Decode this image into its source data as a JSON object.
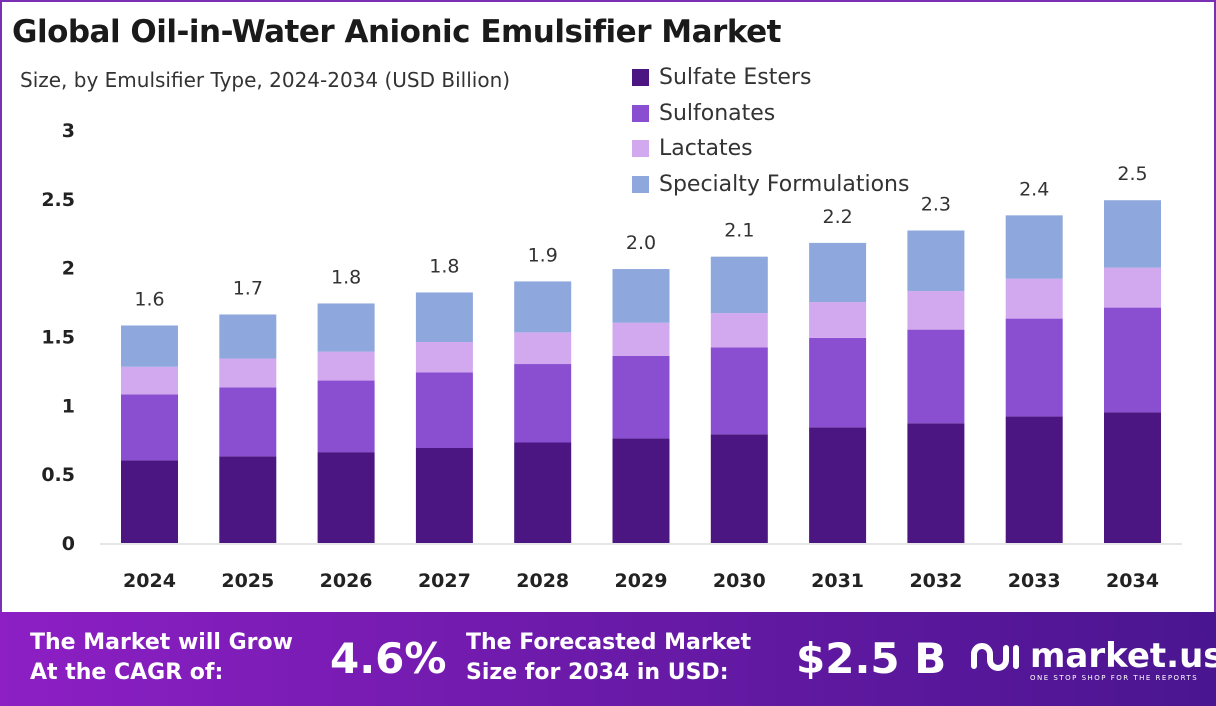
{
  "chart_data": {
    "type": "bar",
    "stacked": true,
    "title": "Global Oil-in-Water Anionic Emulsifier Market",
    "subtitle": "Size, by  Emulsifier Type, 2024-2034 (USD Billion)",
    "categories": [
      "2024",
      "2025",
      "2026",
      "2027",
      "2028",
      "2029",
      "2030",
      "2031",
      "2032",
      "2033",
      "2034"
    ],
    "series": [
      {
        "name": "Sulfate Esters",
        "color": "#4b1582",
        "values": [
          0.6,
          0.63,
          0.66,
          0.69,
          0.73,
          0.76,
          0.79,
          0.84,
          0.87,
          0.92,
          0.95
        ]
      },
      {
        "name": "Sulfonates",
        "color": "#8a4fd0",
        "values": [
          0.48,
          0.5,
          0.52,
          0.55,
          0.57,
          0.6,
          0.63,
          0.65,
          0.68,
          0.71,
          0.76
        ]
      },
      {
        "name": "Lactates",
        "color": "#d2a8ef",
        "values": [
          0.2,
          0.21,
          0.21,
          0.22,
          0.23,
          0.24,
          0.25,
          0.26,
          0.28,
          0.29,
          0.29
        ]
      },
      {
        "name": "Specialty Formulations",
        "color": "#8ea7dc",
        "values": [
          0.3,
          0.32,
          0.35,
          0.36,
          0.37,
          0.39,
          0.41,
          0.43,
          0.44,
          0.46,
          0.49
        ]
      }
    ],
    "totals_labels": [
      "1.6",
      "1.7",
      "1.8",
      "1.8",
      "1.9",
      "2.0",
      "2.1",
      "2.2",
      "2.3",
      "2.4",
      "2.5"
    ],
    "yticks": [
      "0",
      "0.5",
      "1",
      "1.5",
      "2",
      "2.5",
      "3"
    ],
    "ylim": [
      0,
      3
    ],
    "grid": false,
    "legend_position": "top-right"
  },
  "footer": {
    "cagr_label_1": "The Market will Grow",
    "cagr_label_2": "At the CAGR of:",
    "cagr_value": "4.6%",
    "size_label_1": "The Forecasted Market",
    "size_label_2": "Size for 2034 in USD:",
    "size_value": "$2.5 B",
    "logo_name": "market.us",
    "logo_tagline": "ONE STOP SHOP FOR THE REPORTS"
  }
}
